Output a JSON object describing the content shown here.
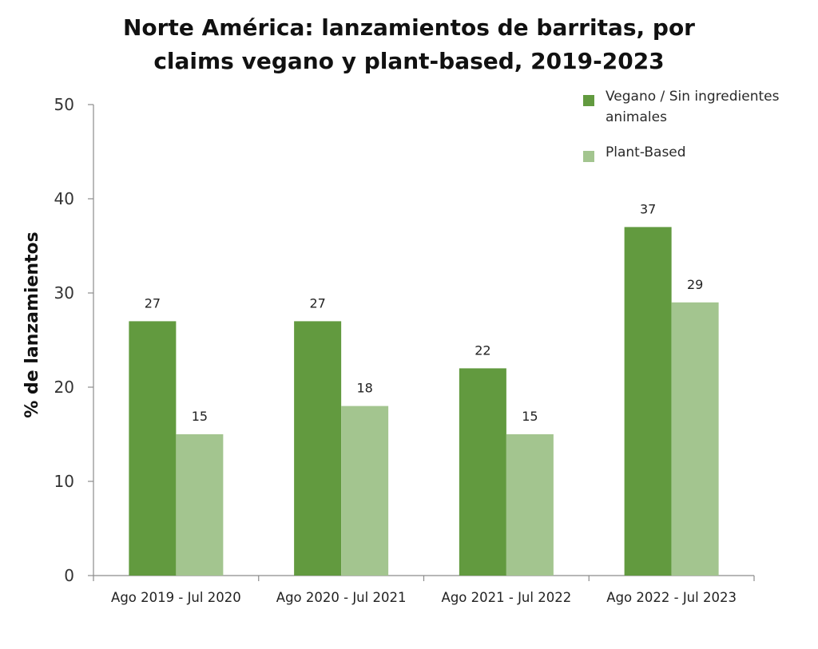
{
  "colors": {
    "vegano": "#629a3f",
    "plant_based": "#a3c58f",
    "axis": "#8c8c8c"
  },
  "chart_data": {
    "type": "bar",
    "title_lines": [
      "Norte América: lanzamientos de barritas, por",
      "claims vegano y plant-based, 2019-2023"
    ],
    "xlabel": "",
    "ylabel": "% de lanzamientos",
    "ylim": [
      0,
      50
    ],
    "yticks": [
      0,
      10,
      20,
      30,
      40,
      50
    ],
    "grid": false,
    "legend_position": "top-right",
    "categories": [
      "Ago 2019 - Jul 2020",
      "Ago 2020 - Jul 2021",
      "Ago 2021 - Jul 2022",
      "Ago 2022 - Jul 2023"
    ],
    "series": [
      {
        "name": "Vegano / Sin ingredientes animales",
        "legend_lines": [
          "Vegano / Sin ingredientes",
          "animales"
        ],
        "values": [
          27,
          27,
          22,
          37
        ]
      },
      {
        "name": "Plant-Based",
        "legend_lines": [
          "Plant-Based"
        ],
        "values": [
          15,
          18,
          15,
          29
        ]
      }
    ]
  }
}
